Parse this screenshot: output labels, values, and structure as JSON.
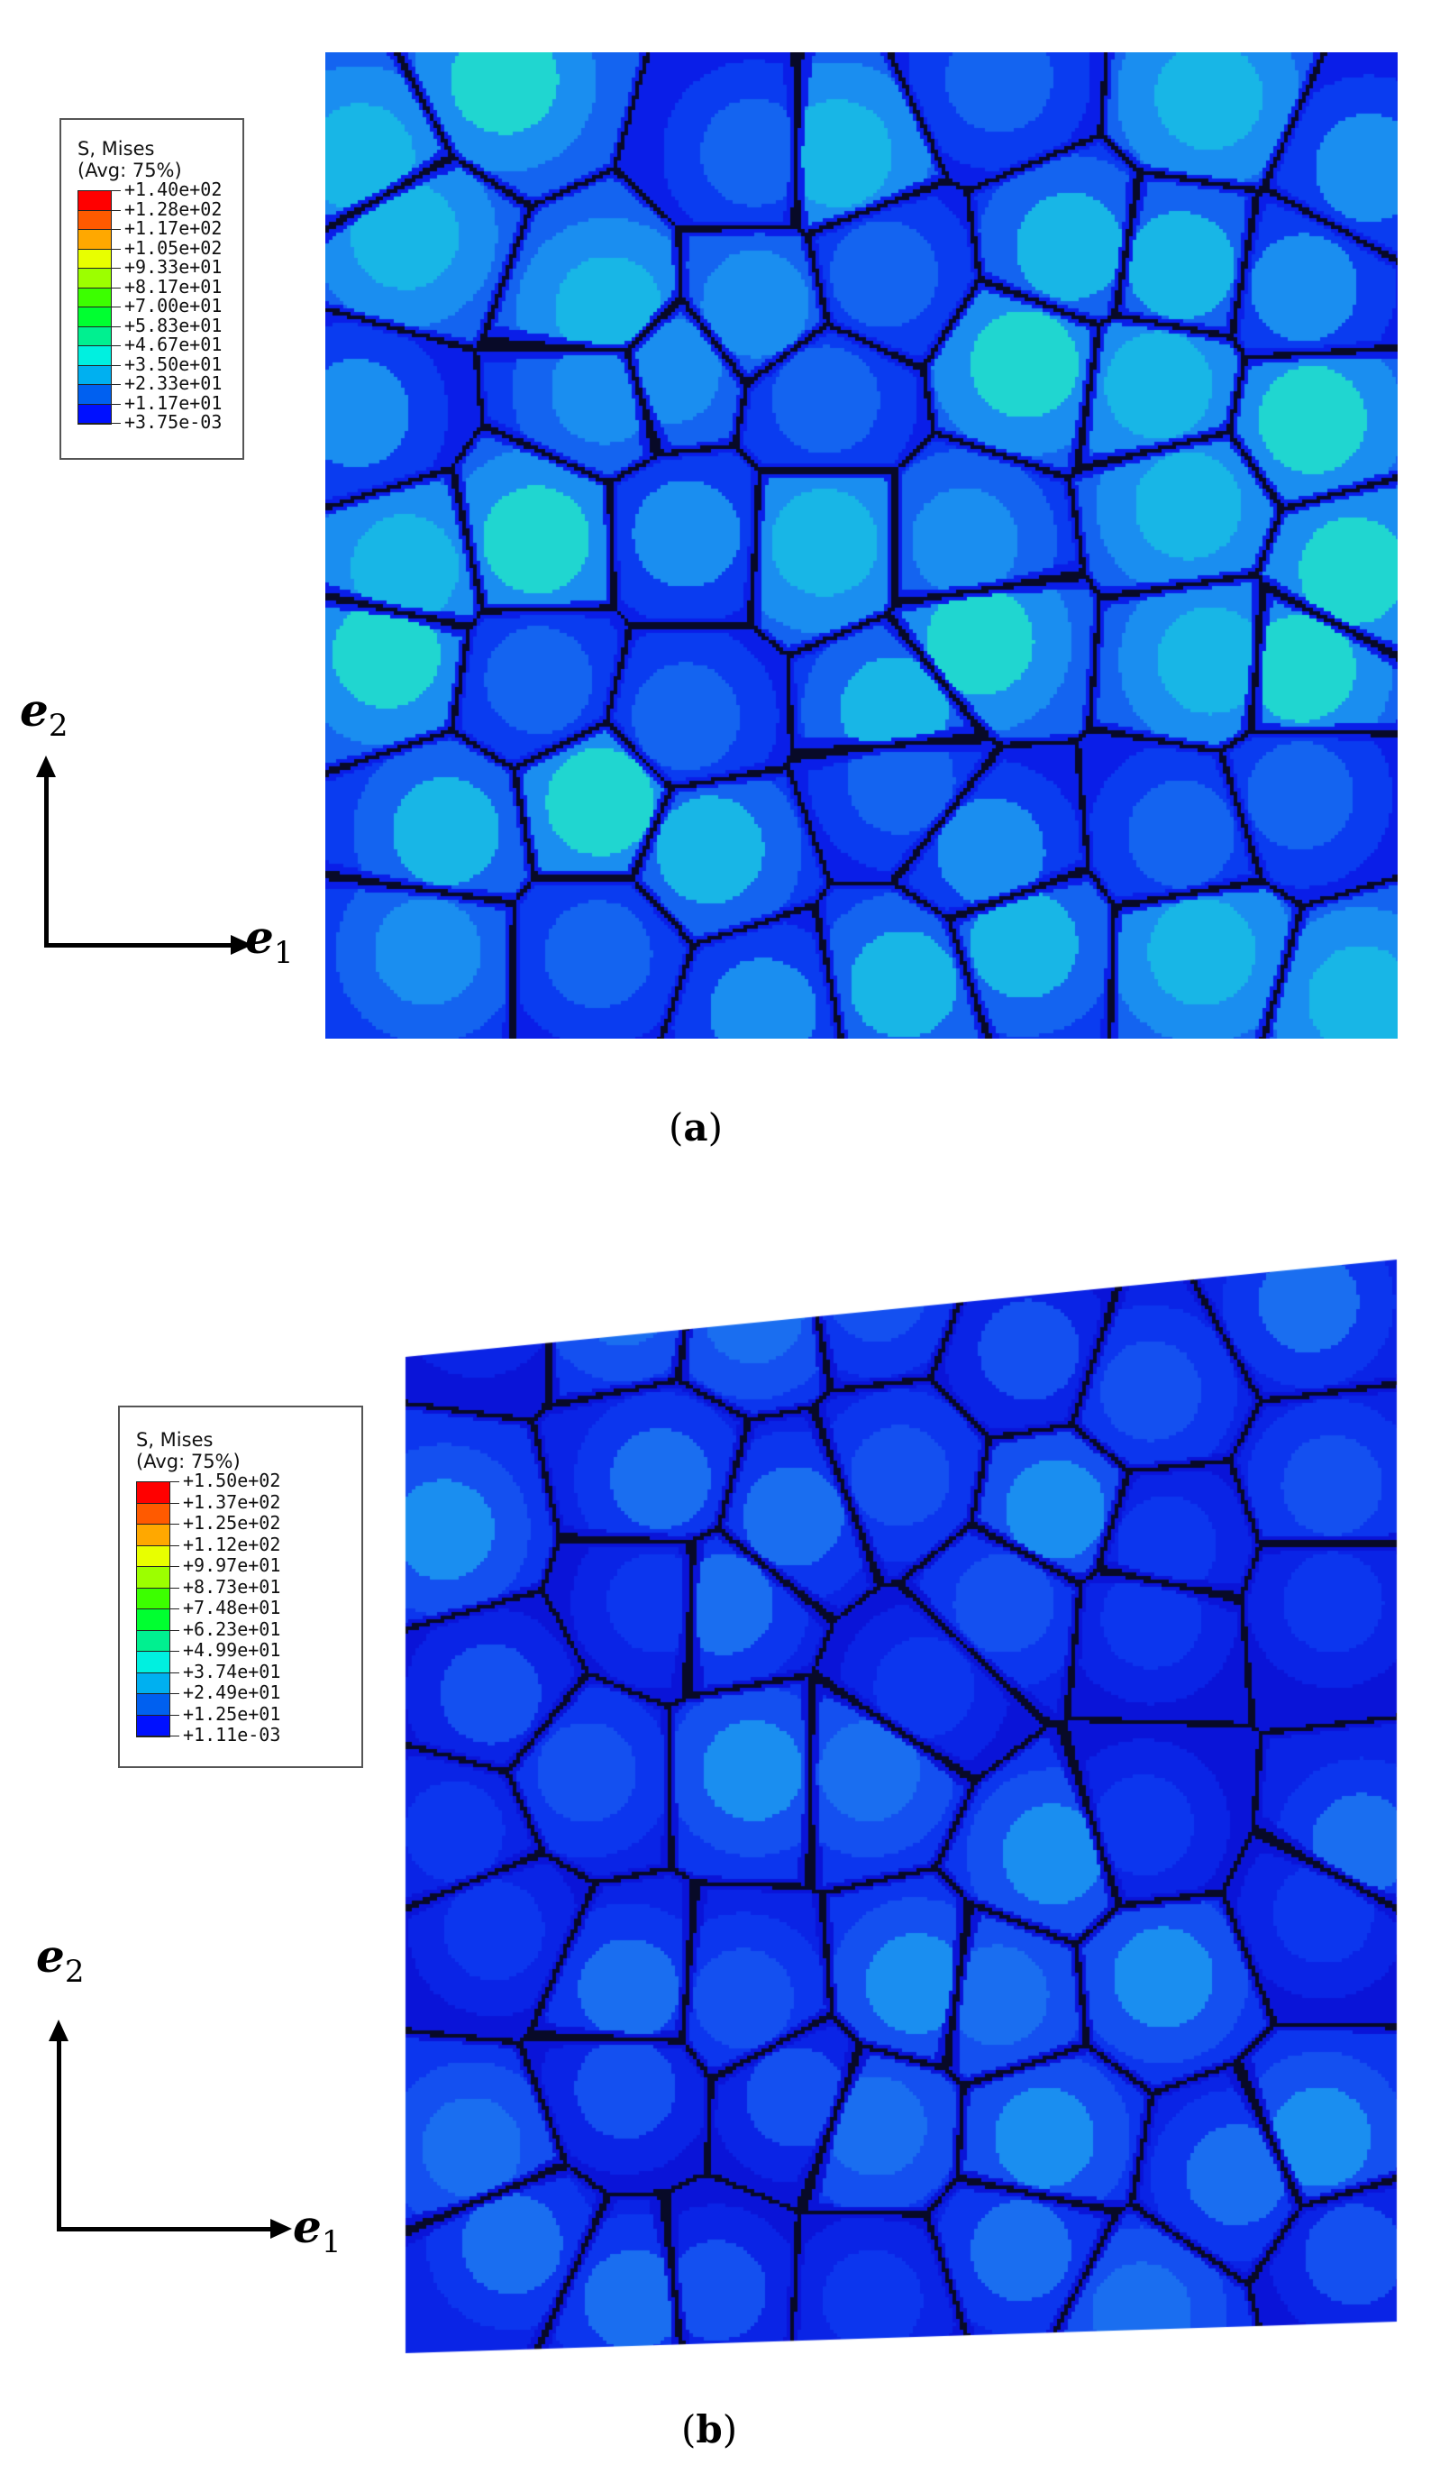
{
  "panels": [
    {
      "caption_letter": "a",
      "legend": {
        "title_line1": "S, Mises",
        "title_line2": "(Avg: 75%)",
        "values": [
          "+1.40e+02",
          "+1.28e+02",
          "+1.17e+02",
          "+1.05e+02",
          "+9.33e+01",
          "+8.17e+01",
          "+7.00e+01",
          "+5.83e+01",
          "+4.67e+01",
          "+3.50e+01",
          "+2.33e+01",
          "+1.17e+01",
          "+3.75e-03"
        ]
      },
      "axes": {
        "e_vertical": "e",
        "sub_vertical": "2",
        "e_horizontal": "e",
        "sub_horizontal": "1"
      },
      "palette": [
        "#0a1ee8",
        "#0a3cf0",
        "#1464f0",
        "#1a8ef0",
        "#18b6e6",
        "#20d6d0",
        "#30e29a",
        "#5ae860"
      ]
    },
    {
      "caption_letter": "b",
      "legend": {
        "title_line1": "S, Mises",
        "title_line2": "(Avg: 75%)",
        "values": [
          "+1.50e+02",
          "+1.37e+02",
          "+1.25e+02",
          "+1.12e+02",
          "+9.97e+01",
          "+8.73e+01",
          "+7.48e+01",
          "+6.23e+01",
          "+4.99e+01",
          "+3.74e+01",
          "+2.49e+01",
          "+1.25e+01",
          "+1.11e-03"
        ]
      },
      "axes": {
        "e_vertical": "e",
        "sub_vertical": "2",
        "e_horizontal": "e",
        "sub_horizontal": "1"
      },
      "palette": [
        "#0a14d8",
        "#0a24e6",
        "#0c36ee",
        "#1450f0",
        "#1a6ef0",
        "#1a8ef0",
        "#20c0e0"
      ]
    }
  ],
  "colorbar": [
    "#ff0000",
    "#ff5a00",
    "#ffa800",
    "#e8ff00",
    "#9cff00",
    "#3cff00",
    "#00ff30",
    "#00f090",
    "#00f0e0",
    "#00b0f0",
    "#0060f0",
    "#0010ff"
  ]
}
